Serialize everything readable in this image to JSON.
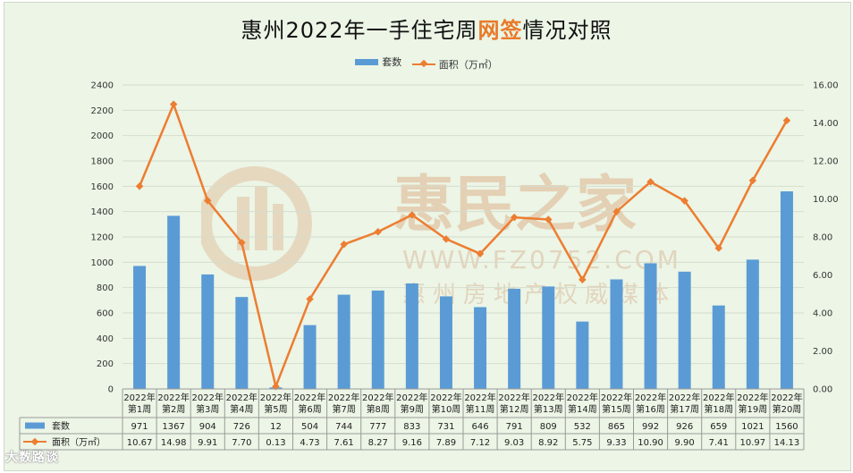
{
  "title_prefix": "惠州2022年一手住宅周",
  "title_highlight": "网签",
  "title_suffix": "情况对照",
  "legend": {
    "bar": "套数",
    "line": "面积（万㎡）"
  },
  "watermark": {
    "name": "惠民之家",
    "url": "WWW.FZ0752.COM",
    "slogan": "惠州房地产权威媒体"
  },
  "brand": "大数路谈",
  "colors": {
    "bar": "#5b9bd5",
    "line": "#ed7d31",
    "plot_bg": "#ecf5e6"
  },
  "chart_data": {
    "type": "bar+line",
    "categories": [
      "2022年第1周",
      "2022年第2周",
      "2022年第3周",
      "2022年第4周",
      "2022年第5周",
      "2022年第6周",
      "2022年第7周",
      "2022年第8周",
      "2022年第9周",
      "2022年第10周",
      "2022年第11周",
      "2022年第12周",
      "2022年第13周",
      "2022年第14周",
      "2022年第15周",
      "2022年第16周",
      "2022年第17周",
      "2022年第18周",
      "2022年第19周",
      "2022年第20周"
    ],
    "series": [
      {
        "name": "套数",
        "type": "bar",
        "axis": "left",
        "values": [
          971,
          1367,
          904,
          726,
          12,
          504,
          744,
          777,
          833,
          731,
          646,
          791,
          809,
          532,
          865,
          992,
          926,
          659,
          1021,
          1560
        ]
      },
      {
        "name": "面积（万㎡）",
        "type": "line",
        "axis": "right",
        "values": [
          10.67,
          14.98,
          9.91,
          7.7,
          0.13,
          4.73,
          7.61,
          8.27,
          9.16,
          7.89,
          7.12,
          9.03,
          8.92,
          5.75,
          9.33,
          10.9,
          9.9,
          7.41,
          10.97,
          14.13
        ]
      }
    ],
    "y_left": {
      "min": 0,
      "max": 2400,
      "ticks": [
        "0",
        "200",
        "400",
        "600",
        "800",
        "1000",
        "1200",
        "1400",
        "1600",
        "1800",
        "2000",
        "2200",
        "2400"
      ]
    },
    "y_right": {
      "min": 0,
      "max": 16,
      "ticks": [
        "0.00",
        "2.00",
        "4.00",
        "6.00",
        "8.00",
        "10.00",
        "12.00",
        "14.00",
        "16.00"
      ]
    },
    "table_rows": [
      {
        "label": "套数",
        "cells": [
          "971",
          "1367",
          "904",
          "726",
          "12",
          "504",
          "744",
          "777",
          "833",
          "731",
          "646",
          "791",
          "809",
          "532",
          "865",
          "992",
          "926",
          "659",
          "1021",
          "1560"
        ]
      },
      {
        "label": "面积（万㎡）",
        "cells": [
          "10.67",
          "14.98",
          "9.91",
          "7.70",
          "0.13",
          "4.73",
          "7.61",
          "8.27",
          "9.16",
          "7.89",
          "7.12",
          "9.03",
          "8.92",
          "5.75",
          "9.33",
          "10.90",
          "9.90",
          "7.41",
          "10.97",
          "14.13"
        ]
      }
    ],
    "grid": true,
    "legend_position": "top"
  }
}
